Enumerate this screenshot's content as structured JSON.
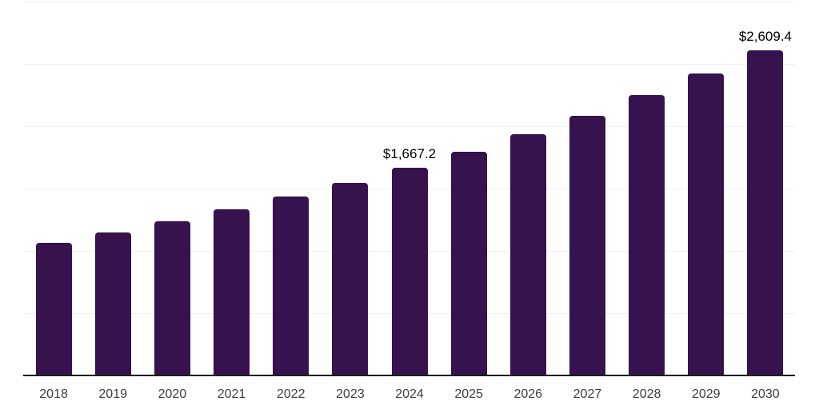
{
  "chart_data": {
    "type": "bar",
    "categories": [
      "2018",
      "2019",
      "2020",
      "2021",
      "2022",
      "2023",
      "2024",
      "2025",
      "2026",
      "2027",
      "2028",
      "2029",
      "2030"
    ],
    "values": [
      1065,
      1148,
      1237,
      1333,
      1436,
      1547,
      1667.2,
      1796,
      1936,
      2086,
      2247,
      2421,
      2609.4
    ],
    "data_labels": [
      "",
      "",
      "",
      "",
      "",
      "",
      "$1,667.2",
      "",
      "",
      "",
      "",
      "",
      "$2,609.4"
    ],
    "ylim": [
      0,
      3000
    ],
    "gridline_step": 500,
    "grid": "horizontal",
    "legend": "none",
    "y_axis_labels": "hidden",
    "colors": {
      "bar": "#36124F",
      "axis_line": "#1b1b1b",
      "gridline": "#f0f0f0",
      "tick_text": "#3d3d3d",
      "data_label_text": "#000000",
      "background": "#ffffff"
    }
  }
}
